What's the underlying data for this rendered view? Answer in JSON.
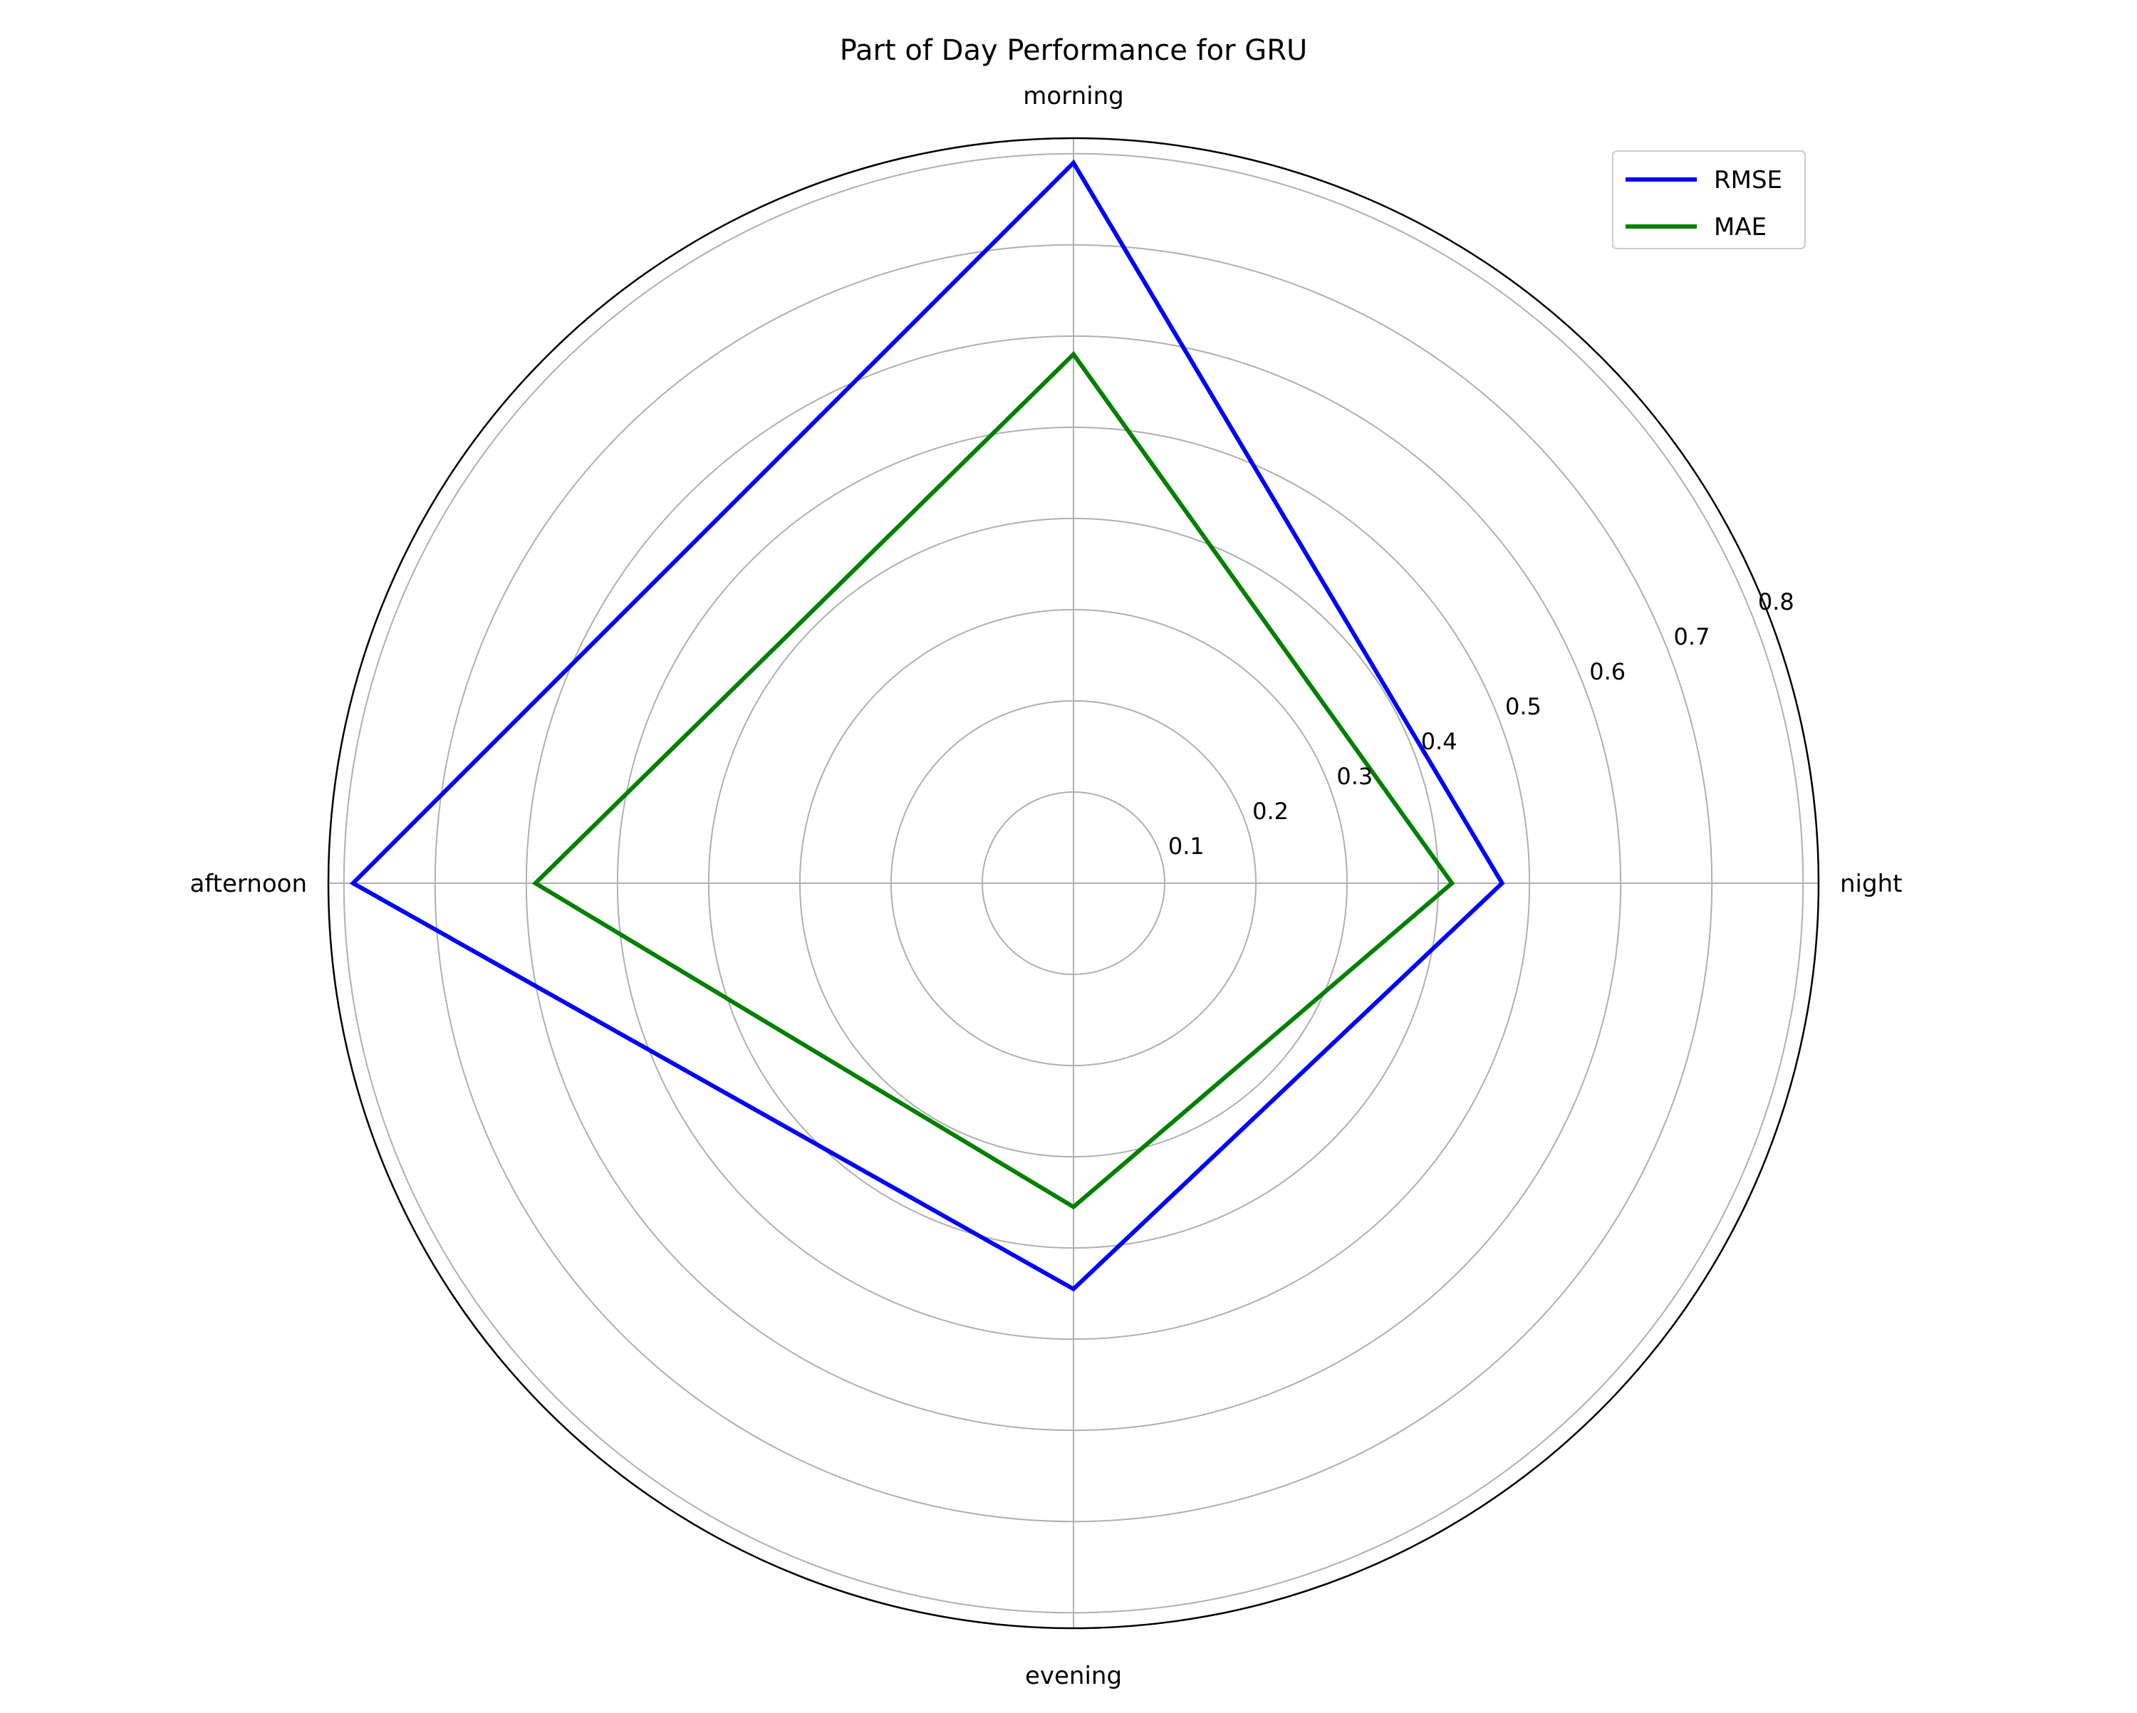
{
  "chart_data": {
    "type": "radar",
    "title": "Part of Day Performance for GRU",
    "categories": [
      "night",
      "morning",
      "afternoon",
      "evening"
    ],
    "rlim": [
      0,
      0.817
    ],
    "rticks": [
      0.1,
      0.2,
      0.3,
      0.4,
      0.5,
      0.6,
      0.7,
      0.8
    ],
    "rtick_labels": [
      "0.1",
      "0.2",
      "0.3",
      "0.4",
      "0.5",
      "0.6",
      "0.7",
      "0.8"
    ],
    "grid": true,
    "legend": "top-right",
    "series": [
      {
        "name": "RMSE",
        "color": "#0000ff",
        "values": [
          0.47,
          0.79,
          0.79,
          0.445
        ]
      },
      {
        "name": "MAE",
        "color": "#008000",
        "values": [
          0.415,
          0.58,
          0.59,
          0.355
        ]
      }
    ]
  }
}
